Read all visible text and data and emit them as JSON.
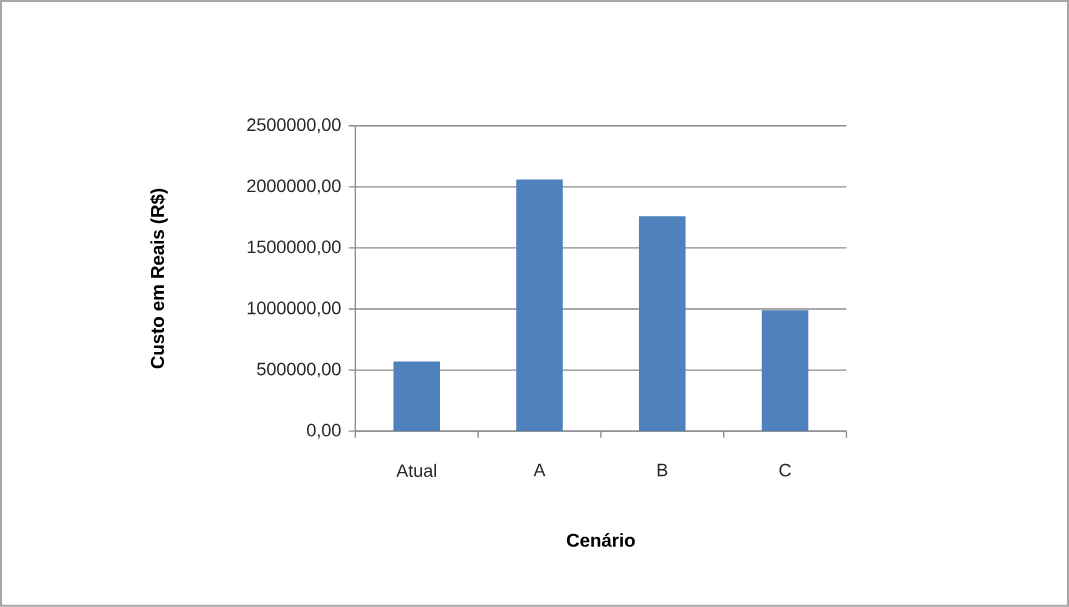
{
  "chart_data": {
    "type": "bar",
    "xlabel": "Cenário",
    "ylabel": "Custo em Reais (R$)",
    "categories": [
      "Atual",
      "A",
      "B",
      "C"
    ],
    "values": [
      570000,
      2060000,
      1760000,
      990000
    ],
    "color": "#4f81bd",
    "ylim": [
      0,
      2500000
    ],
    "yticks": [
      {
        "value": 0,
        "label": "0,00"
      },
      {
        "value": 500000,
        "label": "500000,00"
      },
      {
        "value": 1000000,
        "label": "1000000,00"
      },
      {
        "value": 1500000,
        "label": "1500000,00"
      },
      {
        "value": 2000000,
        "label": "2000000,00"
      },
      {
        "value": 2500000,
        "label": "2500000,00"
      }
    ],
    "grid": "y"
  }
}
